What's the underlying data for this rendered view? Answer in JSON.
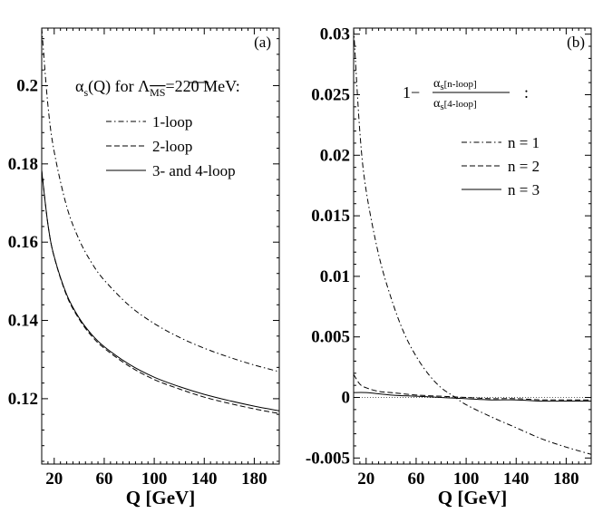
{
  "colors": {
    "ink": "#000000",
    "background": "#ffffff"
  },
  "chart_data": [
    {
      "type": "line",
      "panel_tag": "(a)",
      "xlabel": "Q [GeV]",
      "ylabel": "",
      "xlim": [
        10,
        200
      ],
      "ylim": [
        0.1033,
        0.2147
      ],
      "xticks": [
        20,
        60,
        100,
        140,
        180
      ],
      "xtick_labels": [
        "20",
        "60",
        "100",
        "140",
        "180"
      ],
      "yticks": [
        0.12,
        0.14,
        0.16,
        0.18,
        0.2
      ],
      "ytick_labels": [
        "0.12",
        "0.14",
        "0.16",
        "0.18",
        "0.2"
      ],
      "legend_title": {
        "prefix": "α",
        "sub": "s",
        "mid": "(Q) for Λ",
        "scheme": "MS",
        "suffix": "=220 MeV:"
      },
      "grid": false,
      "series": [
        {
          "name": "1-loop",
          "dash": "dashdot",
          "x": [
            10,
            15,
            20,
            30,
            40,
            50,
            60,
            80,
            100,
            120,
            140,
            160,
            180,
            200
          ],
          "values": [
            0.2147,
            0.1949,
            0.1831,
            0.1691,
            0.1606,
            0.1547,
            0.1503,
            0.1438,
            0.1392,
            0.1357,
            0.1329,
            0.1306,
            0.1286,
            0.1269
          ]
        },
        {
          "name": "2-loop",
          "dash": "dashed",
          "x": [
            10,
            15,
            20,
            30,
            40,
            50,
            60,
            80,
            100,
            120,
            140,
            160,
            180,
            200
          ],
          "values": [
            0.1784,
            0.1645,
            0.1562,
            0.1463,
            0.1403,
            0.136,
            0.1329,
            0.1283,
            0.1249,
            0.1225,
            0.1204,
            0.1188,
            0.1174,
            0.1162
          ]
        },
        {
          "name": "3- and 4-loop",
          "dash": "solid",
          "x": [
            10,
            15,
            20,
            30,
            40,
            50,
            60,
            80,
            100,
            120,
            140,
            160,
            180,
            200
          ],
          "values": [
            0.1782,
            0.1645,
            0.1563,
            0.1466,
            0.1406,
            0.1364,
            0.1333,
            0.1288,
            0.1255,
            0.1231,
            0.1211,
            0.1195,
            0.1181,
            0.1169
          ]
        }
      ]
    },
    {
      "type": "line",
      "panel_tag": "(b)",
      "xlabel": "Q [GeV]",
      "ylabel": "",
      "xlim": [
        10,
        200
      ],
      "ylim": [
        -0.0055,
        0.0305
      ],
      "xticks": [
        20,
        60,
        100,
        140,
        180
      ],
      "xtick_labels": [
        "20",
        "60",
        "100",
        "140",
        "180"
      ],
      "yticks": [
        -0.005,
        0,
        0.005,
        0.01,
        0.015,
        0.02,
        0.025,
        0.03
      ],
      "ytick_labels": [
        "-0.005",
        "0",
        "0.005",
        "0.01",
        "0.015",
        "0.02",
        "0.025",
        "0.03"
      ],
      "legend_title": {
        "lead": "1−",
        "num_base": "α",
        "num_sub": "s",
        "num_bracket": "[n-loop]",
        "den_base": "α",
        "den_sub": "s",
        "den_bracket": "[4-loop]",
        "colon": ":"
      },
      "grid": false,
      "series": [
        {
          "name": "n = 1",
          "dash": "dashdot",
          "x": [
            10,
            15,
            20,
            30,
            40,
            50,
            60,
            70,
            80,
            90,
            100,
            120,
            140,
            160,
            180,
            200
          ],
          "values": [
            0.0305,
            0.0219,
            0.0171,
            0.0118,
            0.0082,
            0.0054,
            0.0034,
            0.0019,
            0.0008,
            0.0001,
            -0.0006,
            -0.0016,
            -0.0025,
            -0.0034,
            -0.0041,
            -0.0047
          ]
        },
        {
          "name": "n = 2",
          "dash": "dashed",
          "x": [
            10,
            15,
            20,
            30,
            40,
            60,
            80,
            100,
            120,
            140,
            160,
            180,
            200
          ],
          "values": [
            0.0019,
            0.0011,
            0.0008,
            0.0005,
            0.0004,
            0.0002,
            0.0001,
            0.0,
            -0.0001,
            -0.0001,
            -0.0002,
            -0.0002,
            -0.0002
          ]
        },
        {
          "name": "n = 3",
          "dash": "solid",
          "x": [
            10,
            20,
            40,
            60,
            80,
            100,
            120,
            140,
            160,
            180,
            200
          ],
          "values": [
            0.0004,
            0.0004,
            0.0002,
            0.0001,
            0.0,
            -0.0001,
            -0.0002,
            -0.0002,
            -0.0003,
            -0.0003,
            -0.0003
          ]
        }
      ]
    }
  ]
}
